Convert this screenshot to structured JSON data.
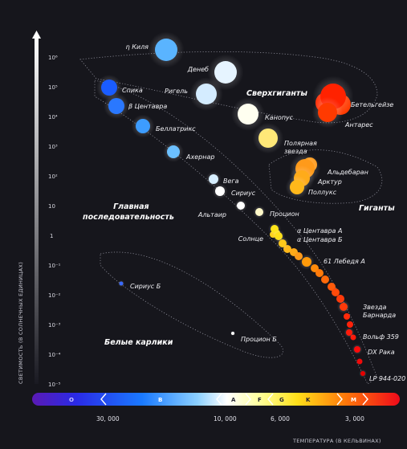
{
  "chart_data": {
    "type": "scatter",
    "ylabel": "СВЕТИМОСТЬ (В СОЛНЕЧНЫХ ЕДИНИЦАХ)",
    "xlabel": "ТЕМПЕРАТУРА (В КЕЛЬВИНАХ)",
    "y_scale": "log",
    "y_ticks": [
      "10⁶",
      "10⁵",
      "10⁴",
      "10³",
      "10²",
      "10",
      "1",
      "10⁻¹",
      "10⁻²",
      "10⁻³",
      "10⁻⁴",
      "10⁻⁵"
    ],
    "x_ticks": [
      "30, 000",
      "10, 000",
      "6, 000",
      "3, 000"
    ],
    "spectral_classes": [
      "O",
      "B",
      "A",
      "F",
      "G",
      "K",
      "M"
    ],
    "regions": [
      "Сверхгиганты",
      "Гиганты",
      "Главная последовательность",
      "Белые карлики"
    ],
    "stars": [
      {
        "name": "η Киля",
        "color": "#5ab4ff"
      },
      {
        "name": "Денеб",
        "color": "#e6f4ff"
      },
      {
        "name": "Ригель",
        "color": "#d4ecff"
      },
      {
        "name": "Спика",
        "color": "#1a5cff"
      },
      {
        "name": "β Центавра",
        "color": "#2a78ff"
      },
      {
        "name": "Беллатрикс",
        "color": "#3d9cff"
      },
      {
        "name": "Ахернар",
        "color": "#6cc0ff"
      },
      {
        "name": "Вега",
        "color": "#d6eeff"
      },
      {
        "name": "Сириус",
        "color": "#ffffff"
      },
      {
        "name": "Альтаир",
        "color": "#ffffff"
      },
      {
        "name": "Процион",
        "color": "#fff8c8"
      },
      {
        "name": "Канопус",
        "color": "#fffff0"
      },
      {
        "name": "Полярная звезда",
        "color": "#ffe878"
      },
      {
        "name": "Бетельгейзе",
        "color": "#ff2200"
      },
      {
        "name": "Антарес",
        "color": "#ff3a00"
      },
      {
        "name": "Альдебаран",
        "color": "#ff9a1a"
      },
      {
        "name": "Арктур",
        "color": "#ffab1a"
      },
      {
        "name": "Поллукс",
        "color": "#ffb81a"
      },
      {
        "name": "Солнце",
        "color": "#ffe51a"
      },
      {
        "name": "α Центавра А",
        "color": "#ffe11a"
      },
      {
        "name": "α Центавра Б",
        "color": "#ffc81a"
      },
      {
        "name": "61 Лебедя А",
        "color": "#ff9a0a"
      },
      {
        "name": "Звезда Барнарда",
        "color": "#ff3a0a"
      },
      {
        "name": "Вольф 359",
        "color": "#ff1a0a"
      },
      {
        "name": "DX Рака",
        "color": "#ff0a0a"
      },
      {
        "name": "LP 944-020",
        "color": "#e60000"
      },
      {
        "name": "Сириус Б",
        "color": "#3a6aff"
      },
      {
        "name": "Процион Б",
        "color": "#ffffff"
      }
    ]
  }
}
